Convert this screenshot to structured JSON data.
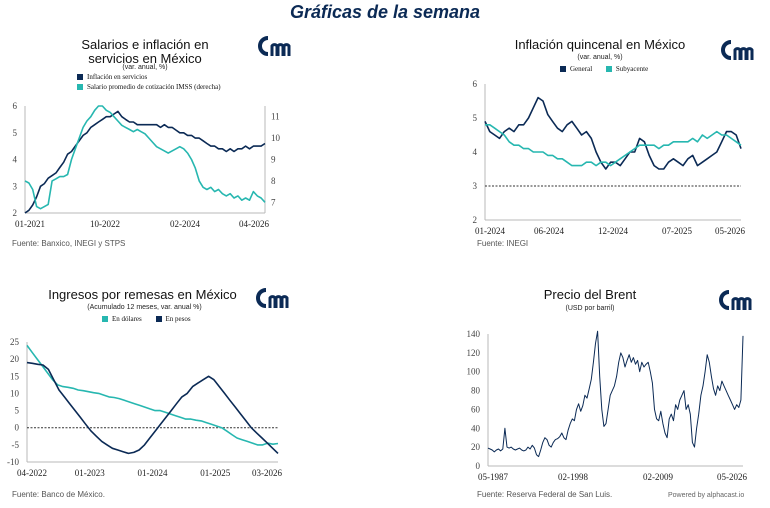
{
  "page_title": "Gráficas de la semana",
  "colors": {
    "navy": "#0b2a55",
    "teal": "#27b7b0",
    "axis": "#b8b8b8",
    "ref": "#333333"
  },
  "logo_icon": "alphacast-logo-icon",
  "panels": {
    "salarios": {
      "title": "Salarios e inflación en servicios en México",
      "subtitle": "(var. anual, %)",
      "legend": [
        "Inflación en servicios",
        "Salario promedio de cotización IMSS (derecha)"
      ],
      "source": "Fuente: Banxico, INEGI y STPS"
    },
    "quincenal": {
      "title": "Inflación quincenal en México",
      "subtitle": "(var. anual, %)",
      "legend": [
        "General",
        "Subyacente"
      ],
      "source": "Fuente: INEGI"
    },
    "remesas": {
      "title": "Ingresos por remesas en México",
      "subtitle": "(Acumulado 12 meses, var. anual %)",
      "legend": [
        "En dólares",
        "En pesos"
      ],
      "source": "Fuente: Banco de México."
    },
    "brent": {
      "title": "Precio del Brent",
      "subtitle": "(USD por barril)",
      "source": "Fuente: Reserva Federal de San Luis.",
      "powered": "Powered by alphacast.io"
    }
  },
  "chart_data": [
    {
      "id": "salarios",
      "type": "line",
      "x_labels": [
        "01-2021",
        "10-2022",
        "02-2024",
        "04-2026"
      ],
      "y_left": {
        "range": [
          2,
          6
        ],
        "ticks": [
          2,
          3,
          4,
          5,
          6
        ]
      },
      "y_right": {
        "range": [
          6.5,
          11.5
        ],
        "ticks": [
          7,
          8,
          9,
          10,
          11
        ]
      },
      "series": [
        {
          "name": "Inflación en servicios",
          "color": "#0b2a55",
          "axis": "left",
          "values": [
            2.0,
            2.1,
            2.3,
            2.6,
            3.0,
            3.1,
            3.3,
            3.4,
            3.5,
            3.7,
            3.9,
            4.2,
            4.3,
            4.5,
            4.7,
            4.9,
            5.0,
            5.2,
            5.3,
            5.4,
            5.5,
            5.6,
            5.6,
            5.7,
            5.8,
            5.6,
            5.5,
            5.4,
            5.4,
            5.3,
            5.3,
            5.3,
            5.3,
            5.3,
            5.3,
            5.2,
            5.3,
            5.2,
            5.2,
            5.1,
            5.0,
            5.0,
            4.9,
            4.9,
            4.8,
            4.8,
            4.7,
            4.6,
            4.5,
            4.5,
            4.4,
            4.4,
            4.3,
            4.4,
            4.3,
            4.4,
            4.4,
            4.5,
            4.4,
            4.5,
            4.5,
            4.5,
            4.6
          ]
        },
        {
          "name": "Salario promedio de cotización IMSS (derecha)",
          "color": "#27b7b0",
          "axis": "right",
          "values": [
            8.0,
            7.9,
            7.6,
            6.8,
            6.7,
            6.8,
            6.9,
            8.0,
            8.1,
            8.2,
            8.2,
            8.3,
            9.0,
            9.5,
            10.0,
            10.5,
            10.8,
            11.0,
            11.3,
            11.5,
            11.5,
            11.3,
            11.2,
            11.0,
            10.8,
            10.6,
            10.5,
            10.4,
            10.3,
            10.4,
            10.3,
            10.2,
            10.0,
            9.8,
            9.6,
            9.5,
            9.4,
            9.3,
            9.4,
            9.5,
            9.6,
            9.5,
            9.3,
            9.0,
            8.6,
            8.0,
            7.7,
            7.6,
            7.7,
            7.5,
            7.6,
            7.4,
            7.3,
            7.4,
            7.2,
            7.3,
            7.1,
            7.2,
            7.1,
            7.5,
            7.3,
            7.2,
            7.0
          ]
        }
      ]
    },
    {
      "id": "quincenal",
      "type": "line",
      "x_labels": [
        "01-2024",
        "06-2024",
        "12-2024",
        "07-2025",
        "05-2026"
      ],
      "y": {
        "range": [
          2,
          6
        ],
        "ticks": [
          2,
          3,
          4,
          5,
          6
        ]
      },
      "reference_line": 3,
      "series": [
        {
          "name": "General",
          "color": "#0b2a55",
          "values": [
            4.9,
            4.6,
            4.5,
            4.4,
            4.6,
            4.7,
            4.6,
            4.8,
            4.8,
            5.0,
            5.3,
            5.6,
            5.5,
            5.1,
            4.9,
            4.7,
            4.6,
            4.8,
            4.9,
            4.7,
            4.5,
            4.6,
            4.4,
            4.0,
            3.7,
            3.5,
            3.7,
            3.7,
            3.6,
            3.8,
            4.0,
            4.0,
            4.4,
            4.3,
            3.9,
            3.6,
            3.5,
            3.5,
            3.7,
            3.8,
            3.7,
            3.6,
            3.8,
            3.9,
            3.6,
            3.7,
            3.8,
            3.9,
            4.0,
            4.3,
            4.6,
            4.6,
            4.5,
            4.1
          ]
        },
        {
          "name": "Subyacente",
          "color": "#27b7b0",
          "values": [
            4.8,
            4.8,
            4.7,
            4.6,
            4.5,
            4.3,
            4.2,
            4.2,
            4.1,
            4.1,
            4.0,
            4.0,
            4.0,
            3.9,
            3.9,
            3.8,
            3.8,
            3.7,
            3.6,
            3.6,
            3.6,
            3.7,
            3.7,
            3.6,
            3.7,
            3.7,
            3.6,
            3.7,
            3.8,
            3.9,
            4.0,
            4.1,
            4.2,
            4.2,
            4.2,
            4.2,
            4.1,
            4.2,
            4.2,
            4.3,
            4.3,
            4.3,
            4.3,
            4.4,
            4.3,
            4.5,
            4.4,
            4.5,
            4.6,
            4.5,
            4.5,
            4.4,
            4.3,
            4.2
          ]
        }
      ]
    },
    {
      "id": "remesas",
      "type": "line",
      "x_labels": [
        "04-2022",
        "01-2023",
        "01-2024",
        "01-2025",
        "03-2026"
      ],
      "y": {
        "range": [
          -10,
          25
        ],
        "ticks": [
          -10,
          -5,
          0,
          5,
          10,
          15,
          20,
          25
        ]
      },
      "reference_line": 0,
      "series": [
        {
          "name": "En dólares",
          "color": "#27b7b0",
          "values": [
            24,
            22,
            20,
            18,
            16,
            14,
            12.5,
            12,
            11.8,
            11.5,
            11,
            10.8,
            10.5,
            10.2,
            10,
            9.5,
            9,
            8.8,
            8.5,
            8,
            7.5,
            7,
            6.5,
            6,
            5.5,
            5,
            5,
            4.5,
            4,
            3.5,
            3,
            2.5,
            2.5,
            2.2,
            2,
            1.5,
            1,
            0.5,
            0,
            -1,
            -2,
            -3,
            -3.5,
            -4,
            -4.5,
            -5,
            -5,
            -4.5,
            -4.8,
            -4.6
          ]
        },
        {
          "name": "En pesos",
          "color": "#0b2a55",
          "values": [
            19,
            18.8,
            18.5,
            18.3,
            17,
            14,
            11,
            9,
            7,
            5,
            3,
            1,
            -1,
            -2.5,
            -4,
            -5,
            -6,
            -6.5,
            -7,
            -7.5,
            -7.2,
            -6.5,
            -5,
            -3,
            -1,
            1,
            3,
            5,
            7,
            9,
            10,
            12,
            13,
            14,
            15,
            14,
            12,
            10,
            8,
            6,
            4,
            2,
            0,
            -1.5,
            -3,
            -4.5,
            -6,
            -7.5
          ]
        }
      ]
    },
    {
      "id": "brent",
      "type": "line",
      "x_labels": [
        "05-1987",
        "02-1998",
        "02-2009",
        "05-2026"
      ],
      "y": {
        "range": [
          0,
          140
        ],
        "ticks": [
          0,
          20,
          40,
          60,
          80,
          100,
          120,
          140
        ]
      },
      "series": [
        {
          "name": "",
          "color": "#0b2a55",
          "values": [
            19,
            18,
            17,
            15,
            17,
            18,
            16,
            18,
            40,
            20,
            19,
            20,
            18,
            17,
            18,
            19,
            17,
            16,
            17,
            20,
            18,
            22,
            19,
            12,
            10,
            17,
            25,
            30,
            28,
            22,
            20,
            25,
            28,
            29,
            31,
            35,
            30,
            28,
            38,
            45,
            50,
            48,
            60,
            66,
            58,
            64,
            75,
            72,
            82,
            92,
            110,
            130,
            143,
            95,
            60,
            42,
            45,
            60,
            75,
            80,
            85,
            95,
            110,
            120,
            115,
            105,
            112,
            118,
            110,
            115,
            108,
            112,
            100,
            110,
            105,
            108,
            110,
            100,
            88,
            60,
            50,
            48,
            58,
            45,
            35,
            30,
            50,
            55,
            48,
            65,
            60,
            70,
            75,
            80,
            60,
            65,
            55,
            25,
            20,
            40,
            55,
            75,
            85,
            100,
            118,
            110,
            95,
            82,
            75,
            85,
            80,
            90,
            85,
            80,
            75,
            70,
            65,
            60,
            65,
            62,
            70,
            138
          ]
        }
      ]
    }
  ]
}
